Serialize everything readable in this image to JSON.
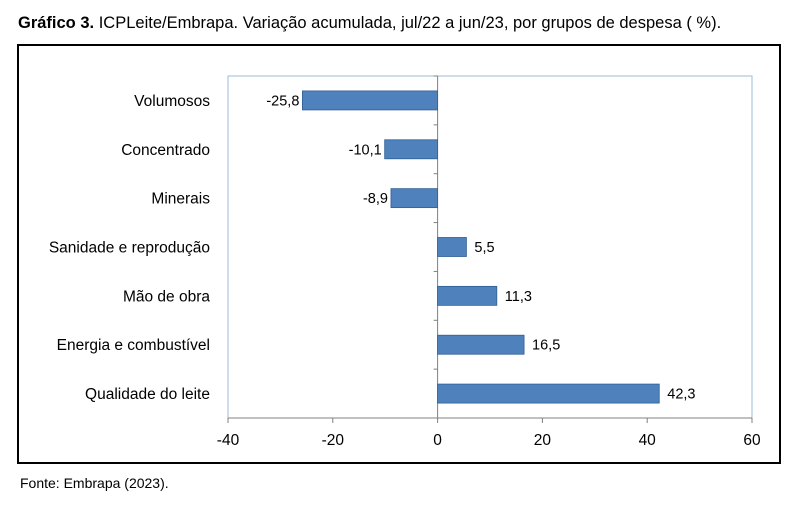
{
  "title_bold": "Gráfico 3.",
  "title_text": " ICPLeite/Embrapa. Variação acumulada, jul/22 a jun/23, por grupos de despesa ( %).",
  "source": "Fonte: Embrapa (2023).",
  "chart_data": {
    "type": "bar",
    "orientation": "horizontal",
    "categories": [
      "Volumosos",
      "Concentrado",
      "Minerais",
      "Sanidade e reprodução",
      "Mão de obra",
      "Energia e combustível",
      "Qualidade do leite"
    ],
    "values": [
      -25.8,
      -10.1,
      -8.9,
      5.5,
      11.3,
      16.5,
      42.3
    ],
    "data_labels": [
      "-25,8",
      "-10,1",
      "-8,9",
      "5,5",
      "11,3",
      "16,5",
      "42,3"
    ],
    "xlim": [
      -40,
      60
    ],
    "xticks": [
      -40,
      -20,
      0,
      20,
      40,
      60
    ],
    "bar_color": "#4f81bd",
    "bar_border_color": "#2f5f95",
    "plot_border_color": "#9dbbd9",
    "grid": false,
    "legend": "none"
  }
}
